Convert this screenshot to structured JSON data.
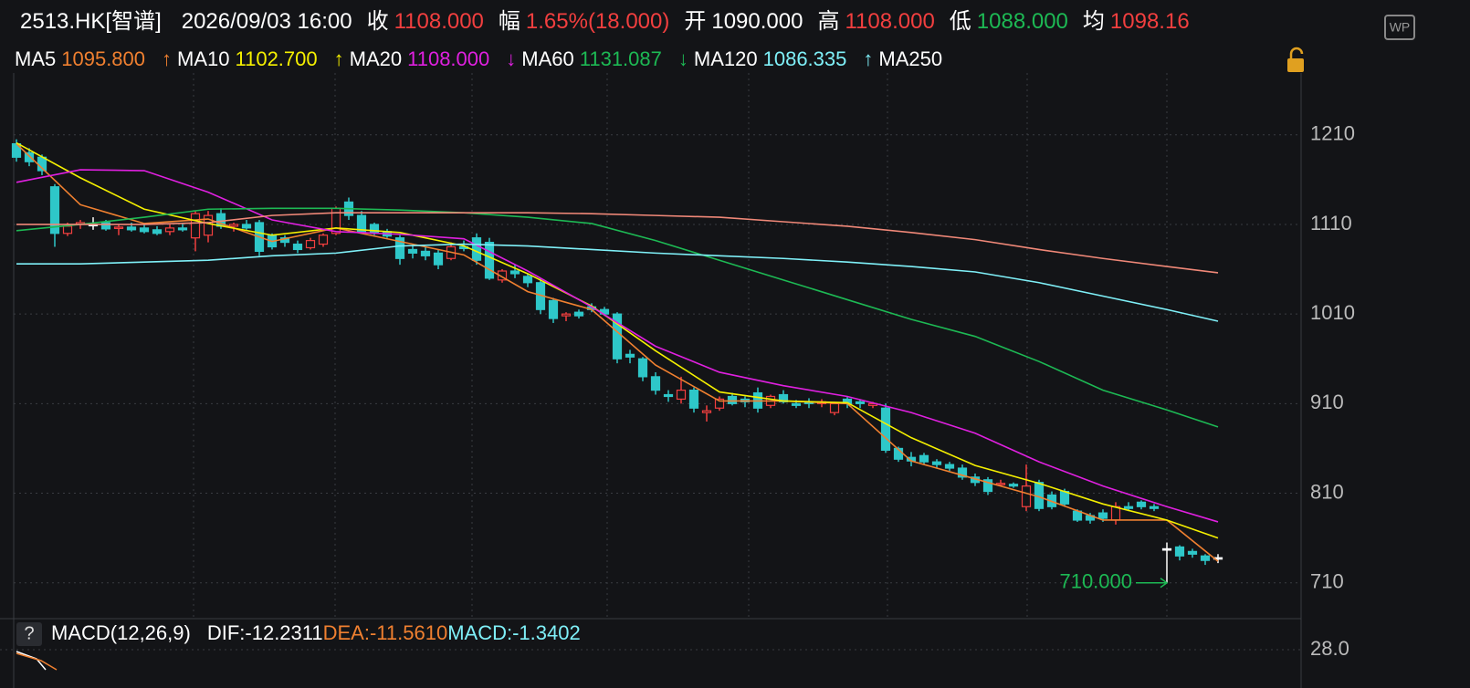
{
  "header": {
    "symbol": "2513.HK[智谱]",
    "datetime": "2026/09/03 16:00",
    "fields": [
      {
        "label": "收",
        "value": "1108.000",
        "color": "#f23f3f"
      },
      {
        "label": "幅",
        "value": "1.65%(18.000)",
        "color": "#f23f3f"
      },
      {
        "label": "开",
        "value": "1090.000",
        "color": "#ffffff"
      },
      {
        "label": "高",
        "value": "1108.000",
        "color": "#f23f3f"
      },
      {
        "label": "低",
        "value": "1088.000",
        "color": "#1db954"
      },
      {
        "label": "均",
        "value": "1098.16",
        "color": "#f23f3f"
      }
    ],
    "badge": "WP"
  },
  "chart_data": {
    "type": "candlestick",
    "ylim": [
      670,
      1279
    ],
    "yticks": [
      710,
      810,
      910,
      1010,
      1110,
      1210
    ],
    "grid": true,
    "candles": {
      "open": [
        1200,
        1190,
        1185,
        1152,
        1100,
        1110,
        1110,
        1112,
        1106,
        1107,
        1106,
        1104,
        1102,
        1106,
        1095,
        1098,
        1122,
        1108,
        1110,
        1112,
        1098,
        1095,
        1088,
        1084,
        1088,
        1100,
        1135,
        1120,
        1110,
        1102,
        1095,
        1082,
        1080,
        1078,
        1072,
        1085,
        1095,
        1090,
        1048,
        1058,
        1052,
        1045,
        1025,
        1008,
        1012,
        1018,
        1015,
        1010,
        965,
        960,
        940,
        920,
        915,
        925,
        900,
        905,
        918,
        915,
        922,
        908,
        920,
        910,
        912,
        910,
        900,
        915,
        912,
        908,
        905,
        860,
        850,
        852,
        845,
        842,
        838,
        828,
        825,
        820,
        820,
        795,
        822,
        808,
        812,
        790,
        785,
        788,
        780,
        795,
        800,
        795,
        748,
        750,
        745,
        740,
        738
      ],
      "high": [
        1205,
        1195,
        1188,
        1155,
        1112,
        1115,
        1118,
        1115,
        1110,
        1112,
        1110,
        1108,
        1110,
        1112,
        1125,
        1125,
        1128,
        1112,
        1115,
        1115,
        1100,
        1098,
        1092,
        1095,
        1100,
        1130,
        1140,
        1125,
        1112,
        1105,
        1098,
        1088,
        1085,
        1082,
        1090,
        1092,
        1100,
        1095,
        1060,
        1065,
        1055,
        1050,
        1028,
        1012,
        1015,
        1022,
        1018,
        1012,
        970,
        962,
        945,
        925,
        940,
        928,
        908,
        918,
        922,
        918,
        928,
        920,
        925,
        914,
        916,
        915,
        912,
        918,
        915,
        912,
        910,
        862,
        856,
        855,
        848,
        845,
        842,
        832,
        828,
        825,
        822,
        842,
        825,
        812,
        815,
        792,
        788,
        792,
        800,
        800,
        802,
        798,
        755,
        752,
        748,
        742,
        742
      ],
      "low": [
        1180,
        1175,
        1165,
        1085,
        1097,
        1105,
        1104,
        1103,
        1098,
        1102,
        1100,
        1098,
        1098,
        1102,
        1080,
        1090,
        1105,
        1102,
        1104,
        1075,
        1082,
        1085,
        1078,
        1082,
        1085,
        1098,
        1115,
        1100,
        1098,
        1095,
        1065,
        1072,
        1070,
        1060,
        1070,
        1080,
        1065,
        1048,
        1045,
        1050,
        1040,
        1010,
        1000,
        1002,
        1005,
        1012,
        1008,
        955,
        955,
        935,
        920,
        912,
        910,
        900,
        890,
        902,
        908,
        906,
        900,
        905,
        910,
        905,
        905,
        906,
        897,
        905,
        905,
        905,
        855,
        845,
        840,
        842,
        838,
        835,
        825,
        818,
        808,
        818,
        816,
        790,
        790,
        792,
        795,
        778,
        776,
        778,
        775,
        790,
        792,
        790,
        710,
        735,
        738,
        730,
        732
      ],
      "close": [
        1185,
        1180,
        1170,
        1100,
        1108,
        1112,
        1110,
        1105,
        1107,
        1104,
        1102,
        1100,
        1106,
        1104,
        1122,
        1120,
        1108,
        1110,
        1106,
        1080,
        1085,
        1090,
        1082,
        1092,
        1098,
        1128,
        1120,
        1102,
        1100,
        1097,
        1072,
        1078,
        1075,
        1065,
        1085,
        1083,
        1070,
        1050,
        1058,
        1055,
        1045,
        1015,
        1005,
        1010,
        1008,
        1015,
        1010,
        960,
        962,
        940,
        925,
        918,
        925,
        905,
        902,
        915,
        910,
        912,
        905,
        918,
        912,
        908,
        910,
        912,
        910,
        910,
        910,
        910,
        858,
        848,
        846,
        845,
        842,
        838,
        828,
        822,
        812,
        821,
        818,
        818,
        793,
        795,
        798,
        780,
        780,
        782,
        795,
        793,
        795,
        793,
        748,
        740,
        742,
        735,
        738
      ]
    },
    "up_color": "#f23f3f",
    "down_color": "#2ec7c9",
    "flat_color": "#ffffff",
    "series": [
      {
        "name": "MA5",
        "color": "#f08030",
        "current": "1095.800",
        "arrow": "↑",
        "x": [
          0,
          5,
          10,
          15,
          20,
          25,
          30,
          35,
          40,
          45,
          50,
          55,
          60,
          65,
          70,
          75,
          80,
          85,
          90,
          94
        ],
        "values": [
          1200,
          1132,
          1111,
          1116,
          1091,
          1106,
          1091,
          1076,
          1035,
          1015,
          953,
          913,
          913,
          910,
          846,
          826,
          806,
          780,
          780,
          734
        ]
      },
      {
        "name": "MA10",
        "color": "#f5f000",
        "current": "1102.700",
        "arrow": "↑",
        "x": [
          0,
          5,
          10,
          15,
          20,
          25,
          30,
          35,
          40,
          45,
          50,
          55,
          60,
          65,
          70,
          75,
          80,
          85,
          90,
          94
        ],
        "values": [
          1201,
          1162,
          1127,
          1111,
          1098,
          1106,
          1101,
          1086,
          1055,
          1019,
          969,
          923,
          913,
          911,
          872,
          841,
          821,
          798,
          780,
          760
        ]
      },
      {
        "name": "MA20",
        "color": "#e020e0",
        "current": "1108.000",
        "arrow": "↓",
        "x": [
          0,
          5,
          10,
          15,
          20,
          25,
          30,
          35,
          40,
          45,
          50,
          55,
          60,
          65,
          70,
          75,
          80,
          85,
          90,
          94
        ],
        "values": [
          1157,
          1171,
          1170,
          1146,
          1115,
          1102,
          1099,
          1094,
          1058,
          1018,
          974,
          945,
          930,
          918,
          900,
          877,
          845,
          818,
          795,
          778
        ]
      },
      {
        "name": "MA60",
        "color": "#1db954",
        "current": "1131.087",
        "arrow": "↓",
        "x": [
          0,
          5,
          10,
          15,
          20,
          25,
          30,
          35,
          40,
          45,
          50,
          55,
          60,
          65,
          70,
          75,
          80,
          85,
          90,
          94
        ],
        "values": [
          1103,
          1110,
          1118,
          1127,
          1128,
          1128,
          1126,
          1123,
          1118,
          1111,
          1092,
          1070,
          1048,
          1026,
          1004,
          985,
          957,
          925,
          903,
          884
        ]
      },
      {
        "name": "MA120",
        "color": "#7ff0f8",
        "current": "1086.335",
        "arrow": "↑",
        "x": [
          0,
          5,
          10,
          15,
          20,
          25,
          30,
          35,
          40,
          45,
          50,
          55,
          60,
          65,
          70,
          75,
          80,
          85,
          90,
          94
        ],
        "values": [
          1066,
          1066,
          1068,
          1070,
          1075,
          1078,
          1086,
          1088,
          1086,
          1082,
          1078,
          1075,
          1072,
          1068,
          1063,
          1057,
          1045,
          1030,
          1015,
          1002
        ]
      },
      {
        "name": "MA250",
        "color": "#f08878",
        "x": [
          0,
          5,
          10,
          15,
          20,
          25,
          30,
          35,
          40,
          45,
          50,
          55,
          60,
          65,
          70,
          75,
          80,
          85,
          90,
          94
        ],
        "values": [
          1110,
          1110,
          1110,
          1112,
          1120,
          1123,
          1123,
          1123,
          1123,
          1122,
          1120,
          1118,
          1113,
          1108,
          1101,
          1093,
          1082,
          1072,
          1063,
          1056
        ]
      }
    ],
    "annotation": {
      "text": "710.000",
      "index": 90,
      "color": "#1db954"
    }
  },
  "macd": {
    "help": "?",
    "title": "MACD(12,26,9)",
    "dif": "DIF:-12.2311",
    "dea": "DEA:-11.5610",
    "macd": "MACD:-1.3402",
    "ytick": "28.0"
  }
}
